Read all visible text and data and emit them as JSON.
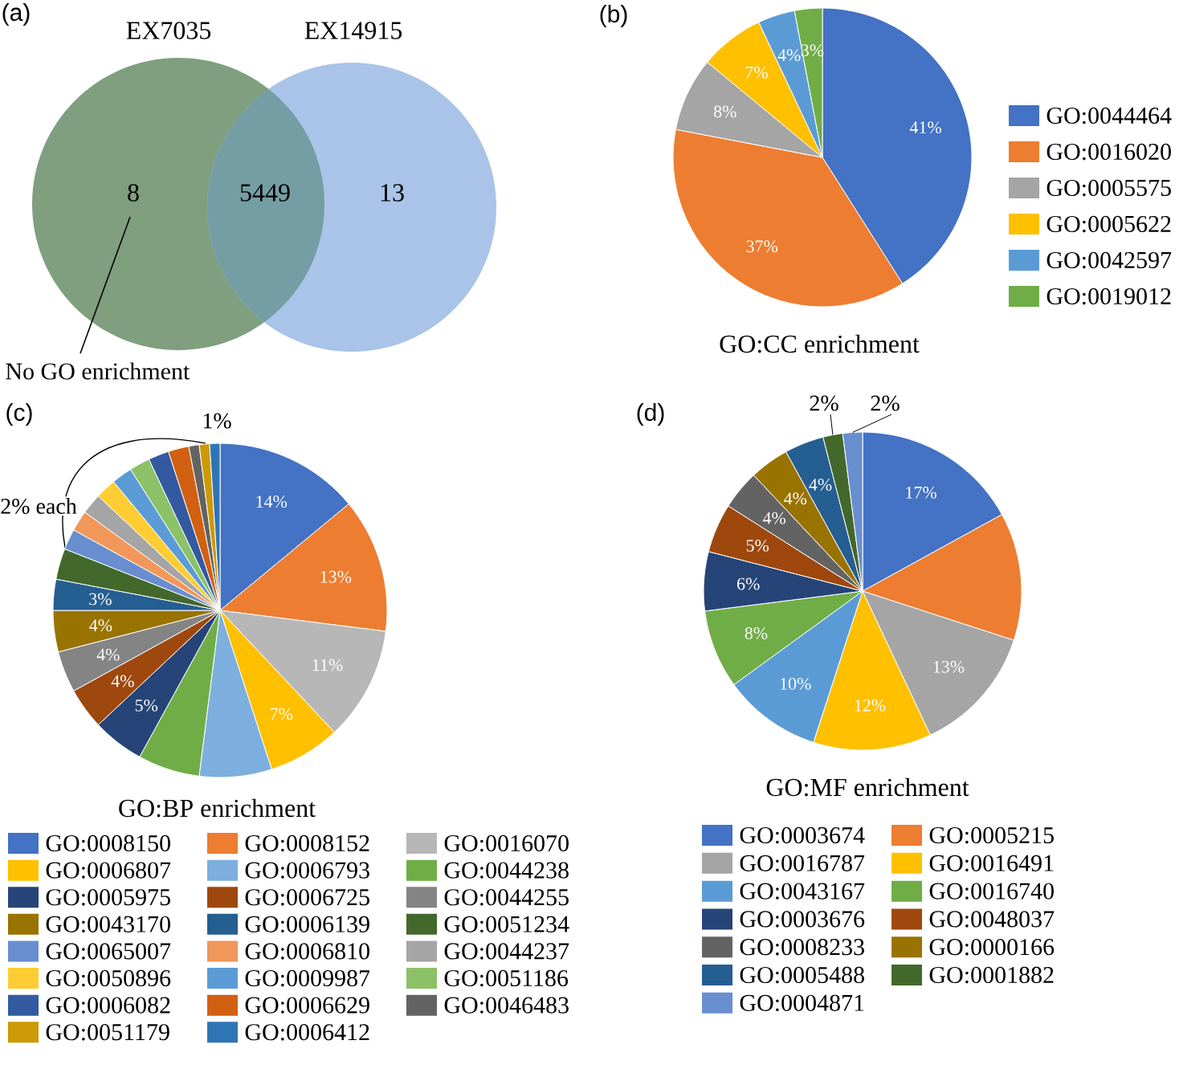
{
  "chart_data": [
    {
      "type": "other",
      "annotations": [
        "(a)",
        "No GO enrichment",
        "EX7035",
        "EX14915"
      ],
      "categories": [
        null,
        null,
        null
      ],
      "values": [
        8,
        5449,
        13
      ],
      "value_labels": [
        "8",
        "5449",
        "13"
      ],
      "colors": [
        "#7f9f7f",
        "#759ea4",
        "#a9c4e8"
      ]
    },
    {
      "type": "pie",
      "title": "GO:CC enrichment",
      "annotations": [
        "(b)"
      ],
      "legend": "right",
      "categories": [
        "GO:0044464",
        "GO:0016020",
        "GO:0005575",
        "GO:0005622",
        "GO:0042597",
        "GO:0019012"
      ],
      "values": [
        41,
        37,
        8,
        7,
        4,
        3
      ],
      "value_labels": [
        "41%",
        "37%",
        "8%",
        "7%",
        "4%",
        "3%"
      ],
      "colors": [
        "#4472c4",
        "#ed7d31",
        "#a5a5a5",
        "#ffc000",
        "#5b9bd5",
        "#70ad47"
      ]
    },
    {
      "type": "pie",
      "title": "GO:BP enrichment",
      "annotations": [
        "(c)",
        "2% each",
        "1%"
      ],
      "legend": "bottom",
      "categories": [
        "GO:0008150",
        "GO:0008152",
        "GO:0016070",
        "GO:0006807",
        "GO:0006793",
        "GO:0044238",
        "GO:0005975",
        "GO:0006725",
        "GO:0044255",
        "GO:0043170",
        "GO:0006139",
        "GO:0051234",
        "GO:0065007",
        "GO:0006810",
        "GO:0044237",
        "GO:0050896",
        "GO:0009987",
        "GO:0051186",
        "GO:0006082",
        "GO:0006629",
        "GO:0046483",
        "GO:0051179",
        "GO:0006412"
      ],
      "values": [
        14,
        13,
        11,
        7,
        7,
        6,
        5,
        4,
        4,
        4,
        3,
        3,
        2,
        2,
        2,
        2,
        2,
        2,
        2,
        2,
        1,
        1,
        1
      ],
      "value_labels": [
        "14%",
        "13%",
        "11%",
        "7%",
        null,
        null,
        "5%",
        "4%",
        "4%",
        "4%",
        "3%",
        null,
        null,
        null,
        null,
        null,
        null,
        null,
        null,
        null,
        null,
        null,
        null
      ],
      "colors": [
        "#4472c4",
        "#ed7d31",
        "#b7b7b7",
        "#ffc000",
        "#7cafdd",
        "#70ad47",
        "#264478",
        "#9e480e",
        "#848484",
        "#997300",
        "#255e91",
        "#43682b",
        "#698ed0",
        "#f1975a",
        "#a5a5a5",
        "#ffcd33",
        "#5b9bd5",
        "#8cc168",
        "#335aa1",
        "#d26012",
        "#636363",
        "#cc9a06",
        "#2f75b5"
      ]
    },
    {
      "type": "pie",
      "title": "GO:MF enrichment",
      "annotations": [
        "(d)"
      ],
      "legend": "bottom",
      "categories": [
        "GO:0003674",
        "GO:0005215",
        "GO:0016787",
        "GO:0016491",
        "GO:0043167",
        "GO:0016740",
        "GO:0003676",
        "GO:0048037",
        "GO:0008233",
        "GO:0000166",
        "GO:0005488",
        "GO:0001882",
        "GO:0004871"
      ],
      "values": [
        17,
        13,
        13,
        12,
        10,
        8,
        6,
        5,
        4,
        4,
        4,
        2,
        2
      ],
      "value_labels": [
        "17%",
        null,
        "13%",
        "12%",
        "10%",
        "8%",
        "6%",
        "5%",
        "4%",
        "4%",
        "4%",
        "2%",
        "2%"
      ],
      "colors": [
        "#4472c4",
        "#ed7d31",
        "#a5a5a5",
        "#ffc000",
        "#5b9bd5",
        "#70ad47",
        "#264478",
        "#9e480e",
        "#636363",
        "#997300",
        "#255e91",
        "#43682b",
        "#698ed0"
      ]
    }
  ]
}
